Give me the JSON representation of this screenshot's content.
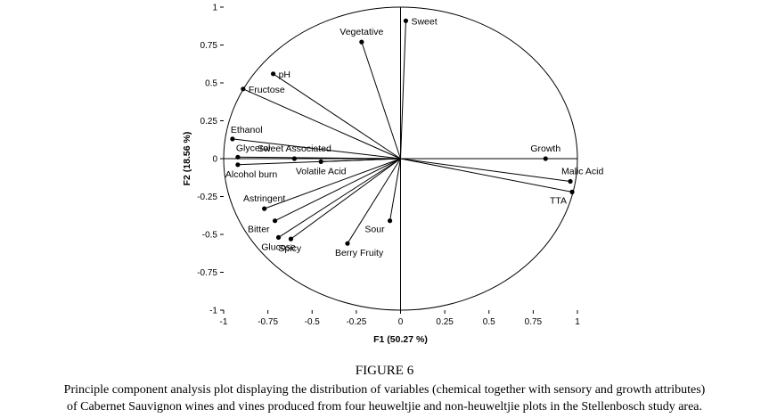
{
  "figure": {
    "title": "FIGURE 6",
    "caption_line1": "Principle component analysis plot displaying the distribution of variables (chemical together with sensory and growth attributes)",
    "caption_line2": "of Cabernet Sauvignon wines and vines produced from four heuweltjie and non-heuweltjie plots in the Stellenbosch study area."
  },
  "chart_data": {
    "type": "scatter",
    "xlabel": "F1 (50.27 %)",
    "ylabel": "F2 (18.56 %)",
    "xlim": [
      -1,
      1
    ],
    "ylim": [
      -1,
      1
    ],
    "x_ticks": [
      {
        "value": -1,
        "label": "-1"
      },
      {
        "value": -0.75,
        "label": "-0.75"
      },
      {
        "value": -0.5,
        "label": "-0.5"
      },
      {
        "value": -0.25,
        "label": "-0.25"
      },
      {
        "value": 0,
        "label": "0"
      },
      {
        "value": 0.25,
        "label": "0.25"
      },
      {
        "value": 0.5,
        "label": "0.5"
      },
      {
        "value": 0.75,
        "label": "0.75"
      },
      {
        "value": 1,
        "label": "1"
      }
    ],
    "y_ticks": [
      {
        "value": 1,
        "label": "1"
      },
      {
        "value": 0.75,
        "label": "0.75"
      },
      {
        "value": 0.5,
        "label": "0.5"
      },
      {
        "value": 0.25,
        "label": "0.25"
      },
      {
        "value": 0,
        "label": "0"
      },
      {
        "value": -0.25,
        "label": "-0.25"
      },
      {
        "value": -0.5,
        "label": "-0.5"
      },
      {
        "value": -0.75,
        "label": "-0.75"
      },
      {
        "value": -1,
        "label": "-1"
      }
    ],
    "grid": false,
    "correlation_circle": true,
    "points": [
      {
        "name": "Sweet",
        "x": 0.03,
        "y": 0.91,
        "anchor": "right"
      },
      {
        "name": "Vegetative",
        "x": -0.22,
        "y": 0.77,
        "anchor": "above"
      },
      {
        "name": "pH",
        "x": -0.72,
        "y": 0.56,
        "anchor": "right"
      },
      {
        "name": "Fructose",
        "x": -0.89,
        "y": 0.46,
        "anchor": "right"
      },
      {
        "name": "Ethanol",
        "x": -0.95,
        "y": 0.13,
        "anchor": "above-right"
      },
      {
        "name": "Glycerol",
        "x": -0.92,
        "y": 0.01,
        "anchor": "above-right"
      },
      {
        "name": "Sweet Associated",
        "x": -0.6,
        "y": 0.0,
        "anchor": "above"
      },
      {
        "name": "Volatile Acid",
        "x": -0.45,
        "y": -0.02,
        "anchor": "below"
      },
      {
        "name": "Alcohol burn",
        "x": -0.92,
        "y": -0.04,
        "anchor": "below-right"
      },
      {
        "name": "Growth",
        "x": 0.82,
        "y": 0.0,
        "anchor": "above"
      },
      {
        "name": "Malic Acid",
        "x": 0.96,
        "y": -0.15,
        "anchor": "above-left"
      },
      {
        "name": "TTA",
        "x": 0.97,
        "y": -0.22,
        "anchor": "below-left"
      },
      {
        "name": "Astringent",
        "x": -0.77,
        "y": -0.33,
        "anchor": "above"
      },
      {
        "name": "Bitter",
        "x": -0.71,
        "y": -0.41,
        "anchor": "below-left"
      },
      {
        "name": "Glucose",
        "x": -0.69,
        "y": -0.52,
        "anchor": "below"
      },
      {
        "name": "Spicy",
        "x": -0.62,
        "y": -0.53,
        "anchor": "below-right"
      },
      {
        "name": "Berry Fruity",
        "x": -0.3,
        "y": -0.56,
        "anchor": "below-right"
      },
      {
        "name": "Sour",
        "x": -0.06,
        "y": -0.41,
        "anchor": "below-left"
      }
    ]
  }
}
